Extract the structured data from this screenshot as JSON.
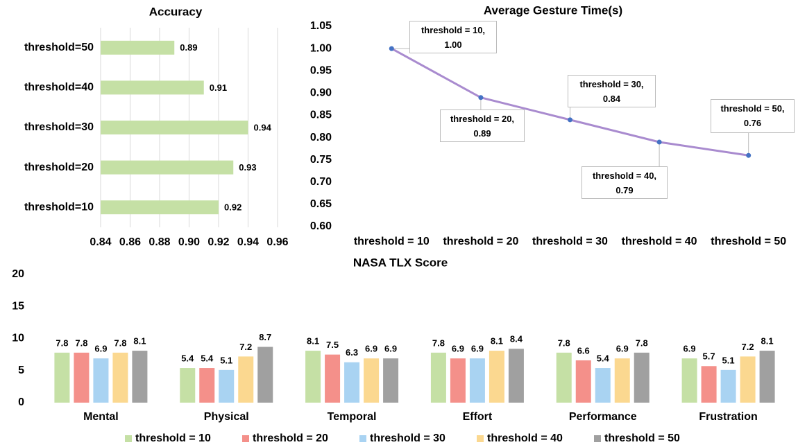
{
  "chart_data": [
    {
      "type": "bar",
      "horizontal": true,
      "title": "Accuracy",
      "categories": [
        "threshold=50",
        "threshold=40",
        "threshold=30",
        "threshold=20",
        "threshold=10"
      ],
      "values": [
        0.89,
        0.91,
        0.94,
        0.93,
        0.92
      ],
      "color": "#c5e0a5",
      "xlim": [
        0.84,
        0.96
      ],
      "xticks": [
        0.84,
        0.86,
        0.88,
        {
          "value": 0.9,
          "label": "0.90"
        },
        0.92,
        0.94,
        0.96
      ],
      "grid": true
    },
    {
      "type": "line",
      "title": "Average Gesture Time(s)",
      "categories": [
        "threshold = 10",
        "threshold = 20",
        "threshold = 30",
        "threshold = 40",
        "threshold = 50"
      ],
      "values": [
        1.0,
        0.89,
        0.84,
        0.79,
        0.76
      ],
      "value_labels": [
        "threshold = 10,\n1.00",
        "threshold = 20,\n0.89",
        "threshold = 30,\n0.84",
        "threshold = 40,\n0.79",
        "threshold = 50,\n0.76"
      ],
      "color": "#a98bcf",
      "marker_color": "#4472c4",
      "ylim": [
        0.6,
        1.05
      ],
      "yticks": [
        {
          "value": 0.6,
          "label": "0.60"
        },
        0.65,
        {
          "value": 0.7,
          "label": "0.70"
        },
        0.75,
        {
          "value": 0.8,
          "label": "0.80"
        },
        0.85,
        {
          "value": 0.9,
          "label": "0.90"
        },
        0.95,
        {
          "value": 1.0,
          "label": "1.00"
        },
        1.05
      ],
      "grid": false
    },
    {
      "type": "bar",
      "title": "NASA TLX Score",
      "categories": [
        "Mental",
        "Physical",
        "Temporal",
        "Effort",
        "Performance",
        "Frustration"
      ],
      "series": [
        {
          "name": "threshold = 10",
          "color": "#c5e0a5",
          "values": [
            7.8,
            5.4,
            8.1,
            7.8,
            7.8,
            6.9
          ]
        },
        {
          "name": "threshold = 20",
          "color": "#f4908a",
          "values": [
            7.8,
            5.4,
            7.5,
            6.9,
            6.6,
            5.7
          ]
        },
        {
          "name": "threshold = 30",
          "color": "#a9d3f2",
          "values": [
            6.9,
            5.1,
            6.3,
            6.9,
            5.4,
            5.1
          ]
        },
        {
          "name": "threshold = 40",
          "color": "#fbd890",
          "values": [
            7.8,
            7.2,
            6.9,
            8.1,
            6.9,
            7.2
          ]
        },
        {
          "name": "threshold = 50",
          "color": "#a0a0a0",
          "values": [
            8.1,
            8.7,
            6.9,
            8.4,
            7.8,
            8.1
          ]
        }
      ],
      "ylim": [
        0,
        20
      ],
      "yticks": [
        0,
        5,
        10,
        15,
        20
      ],
      "grid": false,
      "legend": "bottom"
    }
  ]
}
